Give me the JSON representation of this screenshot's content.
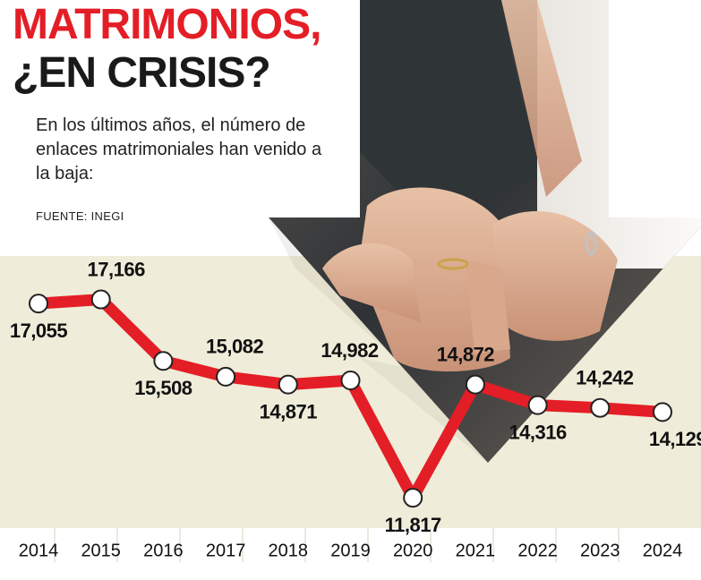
{
  "header": {
    "title_line1": "MATRIMONIOS,",
    "title_line2": "¿EN CRISIS?",
    "subtitle": "En los últimos años, el número de enlaces matrimoniales han venido a la baja:",
    "source": "FUENTE: INEGI"
  },
  "colors": {
    "title": "#e41e26",
    "title_line2": "#1a1a1a",
    "line": "#e41e26",
    "plot_band": "#efecd9",
    "marker_fill": "#ffffff",
    "marker_stroke": "#222222",
    "gridline": "#d7d3bf",
    "arrow_shadow": "#8c8176"
  },
  "photo": {
    "icon": "hands-with-wedding-rings-photo"
  },
  "chart_data": {
    "type": "line",
    "categories": [
      "2014",
      "2015",
      "2016",
      "2017",
      "2018",
      "2019",
      "2020",
      "2021",
      "2022",
      "2023",
      "2024"
    ],
    "values": [
      17055,
      17166,
      15508,
      15082,
      14871,
      14982,
      11817,
      14872,
      14316,
      14242,
      14129
    ],
    "labels": [
      "17,055",
      "17,166",
      "15,508",
      "15,082",
      "14,871",
      "14,982",
      "11,817",
      "14,872",
      "14,316",
      "14,242",
      "14,129"
    ],
    "title": "",
    "xlabel": "",
    "ylabel": "",
    "ylim": [
      11000,
      18000
    ],
    "grid": true,
    "legend": "none"
  }
}
